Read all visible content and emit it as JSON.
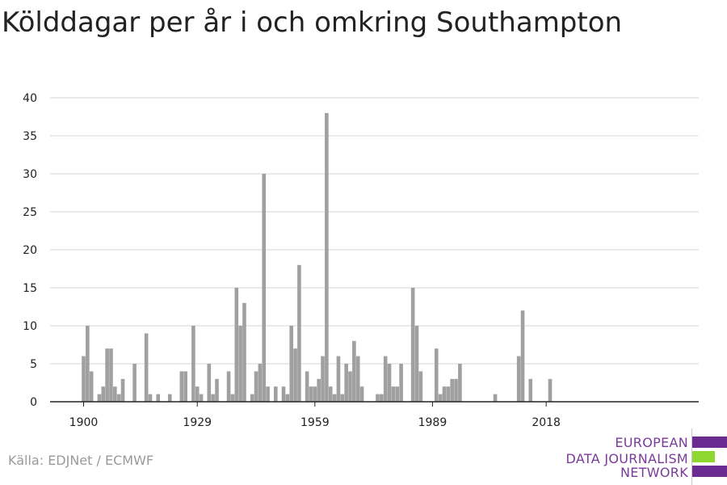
{
  "title": "Kölddagar per år i och omkring Southampton",
  "source": "Källa: EDJNet / ECMWF",
  "logo": {
    "lines": [
      "EUROPEAN",
      "DATA JOURNALISM",
      "NETWORK"
    ],
    "colors": {
      "purple": "#6a2c91",
      "green": "#8ed630"
    }
  },
  "colors": {
    "bar": "#a0a0a0",
    "grid": "#dddddd",
    "axis": "#222222"
  },
  "chart_data": {
    "type": "bar",
    "title": "Kölddagar per år i och omkring Southampton",
    "xlabel": "",
    "ylabel": "",
    "ylim": [
      0,
      40
    ],
    "yticks": [
      0,
      5,
      10,
      15,
      20,
      25,
      30,
      35,
      40
    ],
    "xticks": [
      1900,
      1929,
      1959,
      1989,
      2018
    ],
    "grid": true,
    "categories": [
      1900,
      1901,
      1902,
      1903,
      1904,
      1905,
      1906,
      1907,
      1908,
      1909,
      1910,
      1911,
      1912,
      1913,
      1914,
      1915,
      1916,
      1917,
      1918,
      1919,
      1920,
      1921,
      1922,
      1923,
      1924,
      1925,
      1926,
      1927,
      1928,
      1929,
      1930,
      1931,
      1932,
      1933,
      1934,
      1935,
      1936,
      1937,
      1938,
      1939,
      1940,
      1941,
      1942,
      1943,
      1944,
      1945,
      1946,
      1947,
      1948,
      1949,
      1950,
      1951,
      1952,
      1953,
      1954,
      1955,
      1956,
      1957,
      1958,
      1959,
      1960,
      1961,
      1962,
      1963,
      1964,
      1965,
      1966,
      1967,
      1968,
      1969,
      1970,
      1971,
      1972,
      1973,
      1974,
      1975,
      1976,
      1977,
      1978,
      1979,
      1980,
      1981,
      1982,
      1983,
      1984,
      1985,
      1986,
      1987,
      1988,
      1989,
      1990,
      1991,
      1992,
      1993,
      1994,
      1995,
      1996,
      1997,
      1998,
      1999,
      2000,
      2001,
      2002,
      2003,
      2004,
      2005,
      2006,
      2007,
      2008,
      2009,
      2010,
      2011,
      2012,
      2013,
      2014,
      2015,
      2016,
      2017,
      2018,
      2019
    ],
    "values": [
      6,
      10,
      4,
      0,
      1,
      2,
      7,
      7,
      2,
      1,
      3,
      0,
      0,
      5,
      0,
      0,
      9,
      1,
      0,
      1,
      0,
      0,
      1,
      0,
      0,
      4,
      4,
      0,
      10,
      2,
      1,
      0,
      5,
      1,
      3,
      0,
      0,
      4,
      1,
      15,
      10,
      13,
      0,
      1,
      4,
      5,
      30,
      2,
      0,
      2,
      0,
      2,
      1,
      10,
      7,
      18,
      0,
      4,
      2,
      2,
      3,
      6,
      38,
      2,
      1,
      6,
      1,
      5,
      4,
      8,
      6,
      2,
      0,
      0,
      0,
      1,
      1,
      6,
      5,
      2,
      2,
      5,
      0,
      0,
      15,
      10,
      4,
      0,
      0,
      0,
      7,
      1,
      2,
      2,
      3,
      3,
      5,
      0,
      0,
      0,
      0,
      0,
      0,
      0,
      0,
      1,
      0,
      0,
      0,
      0,
      0,
      6,
      12,
      0,
      3,
      0,
      0,
      0,
      0,
      3
    ]
  }
}
